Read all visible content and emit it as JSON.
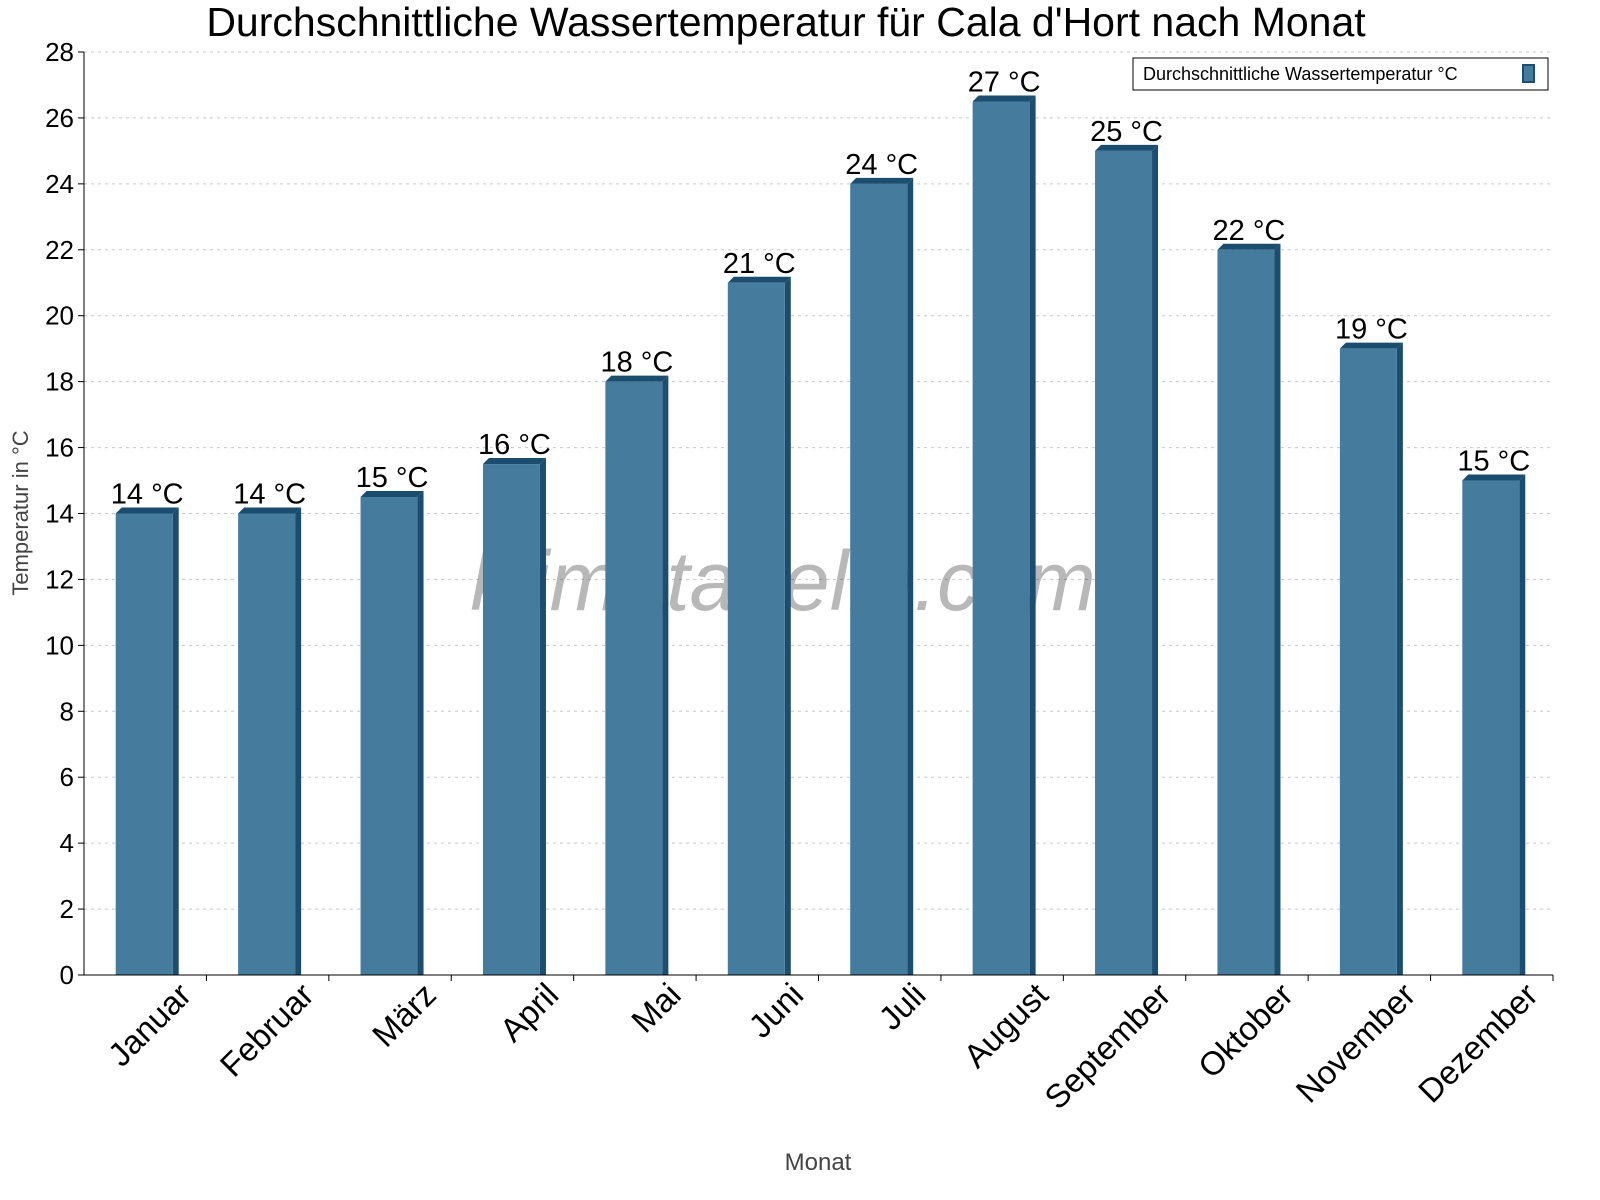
{
  "chart_data": {
    "type": "bar",
    "title": "Durchschnittliche Wassertemperatur für Cala d'Hort nach Monat",
    "xlabel": "Monat",
    "ylabel": "Temperatur in °C",
    "ylim": [
      0,
      28
    ],
    "yticks": [
      0,
      2,
      4,
      6,
      8,
      10,
      12,
      14,
      16,
      18,
      20,
      22,
      24,
      26,
      28
    ],
    "grid": true,
    "legend_position": "top-right",
    "categories": [
      "Januar",
      "Februar",
      "März",
      "April",
      "Mai",
      "Juni",
      "Juli",
      "August",
      "September",
      "Oktober",
      "November",
      "Dezember"
    ],
    "series": [
      {
        "name": "Durchschnittliche Wassertemperatur °C",
        "values": [
          14,
          14,
          14.5,
          15.5,
          18,
          21,
          24,
          26.5,
          25,
          22,
          19,
          15
        ],
        "data_labels": [
          "14 °C",
          "14 °C",
          "15 °C",
          "16 °C",
          "18 °C",
          "21 °C",
          "24 °C",
          "27 °C",
          "25 °C",
          "22 °C",
          "19 °C",
          "15 °C"
        ],
        "color": "#457b9d",
        "shade_color": "#1b4d6e"
      }
    ],
    "watermark": "klimatabelle.com"
  }
}
